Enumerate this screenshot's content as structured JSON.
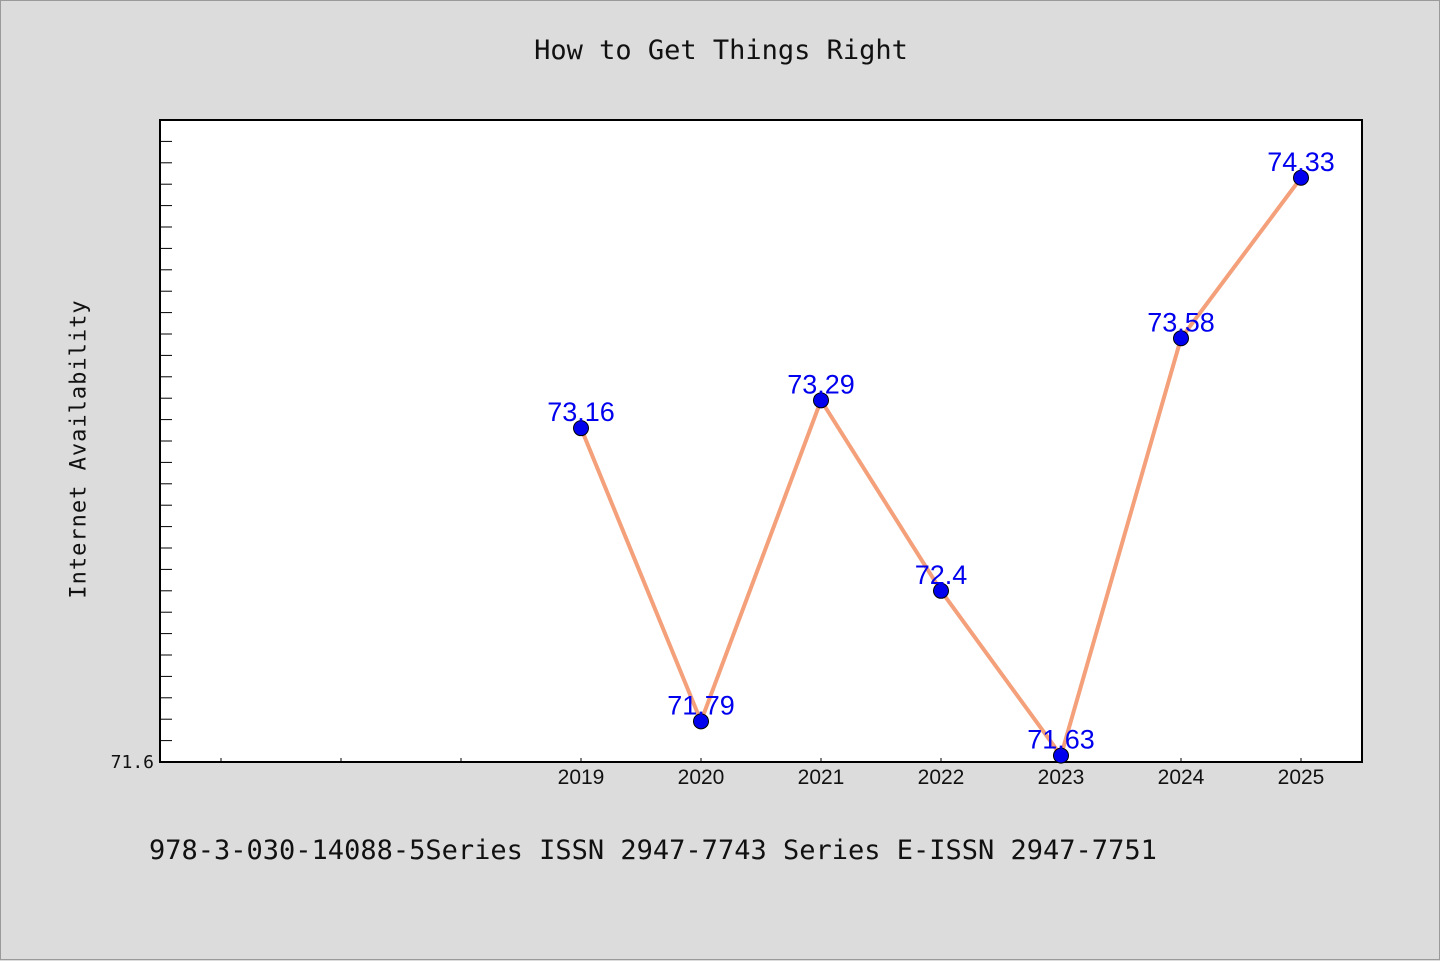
{
  "chart_data": {
    "type": "line",
    "title": "How to Get Things Right",
    "xlabel": "",
    "ylabel": "Internet Availability",
    "categories": [
      "2019",
      "2020",
      "2021",
      "2022",
      "2023",
      "2024",
      "2025"
    ],
    "series": [
      {
        "values": [
          73.16,
          71.79,
          73.29,
          72.4,
          71.63,
          73.58,
          74.33
        ],
        "labels": [
          "73.16",
          "71.79",
          "73.29",
          "72.4",
          "71.63",
          "73.58",
          "74.33"
        ],
        "line_color": "#f4a07a",
        "marker_color": "#0000ee",
        "label_color": "#0000ee"
      }
    ],
    "ylim": [
      71.6,
      74.6
    ],
    "y_tick_labels": [
      "71.6"
    ],
    "grid": false,
    "legend": "none"
  },
  "footer": {
    "text": "978-3-030-14088-5Series ISSN 2947-7743 Series E-ISSN 2947-7751"
  },
  "colors": {
    "page_background": "#dcdcdc",
    "plot_background": "#ffffff"
  }
}
